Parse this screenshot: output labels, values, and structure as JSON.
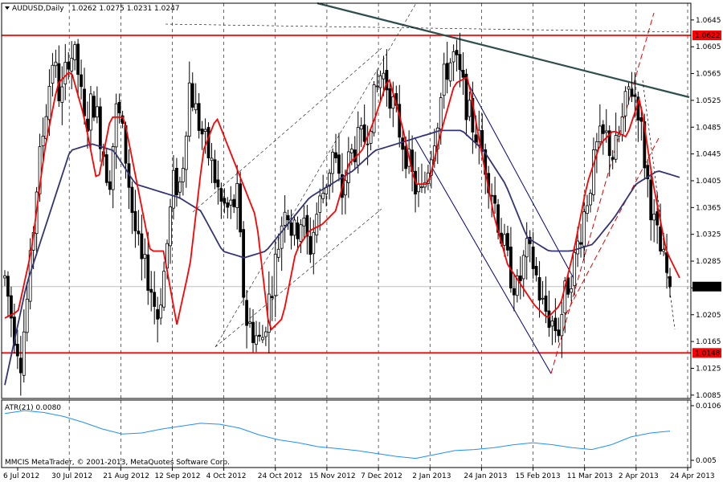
{
  "header": {
    "symbol": "AUDUSD,Daily",
    "ohlc": "1.0262 1.0275 1.0231 1.0247"
  },
  "footer": {
    "copyright": "MMCIS MetaTrader, © 2001-2013, MetaQuotes Software Corp."
  },
  "colors": {
    "bull_candle": "#ffffff",
    "bear_candle": "#000000",
    "ma_fast": "#ff0000",
    "ma_slow": "#333377",
    "hline": "#ff0000",
    "trendline": "#2f4f4f",
    "atr": "#1e90ff",
    "channel": "#000080"
  },
  "chart_data": [
    {
      "type": "candlestick",
      "symbol": "AUDUSD",
      "timeframe": "Daily",
      "price_range": [
        1.008,
        1.067
      ],
      "y_ticks": [
        "1.0645",
        "1.0605",
        "1.0565",
        "1.0525",
        "1.0485",
        "1.0445",
        "1.0405",
        "1.0365",
        "1.0325",
        "1.0285",
        "1.0245",
        "1.0205",
        "1.0165",
        "1.0125",
        "1.0085"
      ],
      "x_ticks": [
        "6 Jul 2012",
        "30 Jul 2012",
        "21 Aug 2012",
        "12 Sep 2012",
        "4 Oct 2012",
        "24 Oct 2012",
        "15 Nov 2012",
        "7 Dec 2012",
        "2 Jan 2013",
        "24 Jan 2013",
        "15 Feb 2013",
        "11 Mar 2013",
        "2 Apr 2013",
        "24 Apr 2013"
      ],
      "horizontal_levels": [
        {
          "label": "1.0622",
          "value": 1.0622
        },
        {
          "label": "1.0148",
          "value": 1.0148
        }
      ],
      "current_price_label": "1.0247",
      "current_price": 1.0247,
      "last_candle": {
        "open": 1.0262,
        "high": 1.0275,
        "low": 1.0231,
        "close": 1.0247
      },
      "close_path": [
        1.026,
        1.019,
        1.014,
        1.025,
        1.04,
        1.05,
        1.059,
        1.052,
        1.06,
        1.058,
        1.048,
        1.053,
        1.047,
        1.04,
        1.052,
        1.045,
        1.035,
        1.028,
        1.026,
        1.02,
        1.028,
        1.04,
        1.04,
        1.055,
        1.05,
        1.046,
        1.042,
        1.037,
        1.036,
        1.038,
        1.02,
        1.018,
        1.016,
        1.023,
        1.03,
        1.038,
        1.032,
        1.035,
        1.03,
        1.036,
        1.04,
        1.045,
        1.038,
        1.044,
        1.046,
        1.047,
        1.052,
        1.057,
        1.054,
        1.049,
        1.045,
        1.04,
        1.038,
        1.044,
        1.05,
        1.057,
        1.059,
        1.055,
        1.05,
        1.047,
        1.043,
        1.038,
        1.032,
        1.027,
        1.024,
        1.03,
        1.028,
        1.022,
        1.02,
        1.018,
        1.024,
        1.028,
        1.034,
        1.04,
        1.046,
        1.047,
        1.044,
        1.049,
        1.055,
        1.052,
        1.042,
        1.034,
        1.029,
        1.0247
      ],
      "ma_fast_path": [
        1.02,
        1.021,
        1.03,
        1.045,
        1.055,
        1.057,
        1.05,
        1.04,
        1.05,
        1.05,
        1.04,
        1.03,
        1.03,
        1.019,
        1.028,
        1.045,
        1.05,
        1.045,
        1.04,
        1.035,
        1.018,
        1.02,
        1.03,
        1.033,
        1.034,
        1.036,
        1.043,
        1.045,
        1.05,
        1.056,
        1.049,
        1.04,
        1.04,
        1.048,
        1.055,
        1.056,
        1.045,
        1.035,
        1.028,
        1.025,
        1.022,
        1.02,
        1.022,
        1.03,
        1.04,
        1.046,
        1.048,
        1.047,
        1.053,
        1.04,
        1.03,
        1.026
      ],
      "ma_slow_path": [
        1.01,
        1.025,
        1.035,
        1.045,
        1.046,
        1.045,
        1.04,
        1.039,
        1.038,
        1.036,
        1.03,
        1.029,
        1.03,
        1.034,
        1.038,
        1.04,
        1.042,
        1.045,
        1.046,
        1.047,
        1.048,
        1.048,
        1.045,
        1.04,
        1.032,
        1.03,
        1.03,
        1.031,
        1.035,
        1.04,
        1.042,
        1.041
      ],
      "indicator": {
        "name": "ATR(21)",
        "label": "ATR(21) 0.0080",
        "value": 0.008,
        "range": [
          0.005,
          0.0106
        ],
        "y_ticks": [
          "0.0106",
          "0.005"
        ],
        "path": [
          0.0098,
          0.0101,
          0.0099,
          0.0095,
          0.0089,
          0.0082,
          0.0077,
          0.0078,
          0.0082,
          0.0085,
          0.0088,
          0.0087,
          0.0083,
          0.0076,
          0.0071,
          0.0068,
          0.0064,
          0.0062,
          0.006,
          0.0057,
          0.0054,
          0.0052,
          0.0056,
          0.006,
          0.0061,
          0.0063,
          0.0066,
          0.0068,
          0.0066,
          0.0063,
          0.0061,
          0.0066,
          0.0074,
          0.0078,
          0.008
        ]
      }
    }
  ]
}
